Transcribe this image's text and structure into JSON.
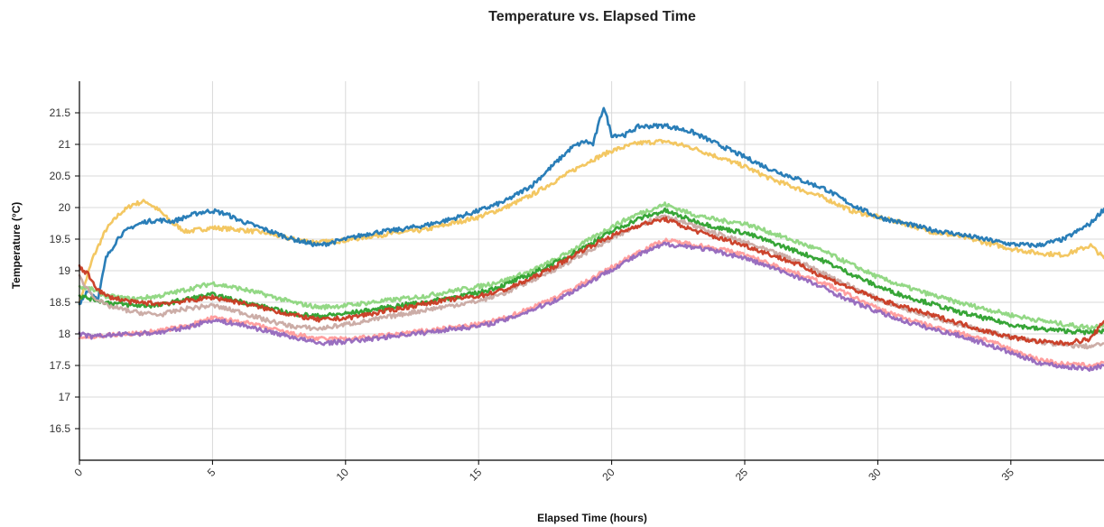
{
  "chart_data": {
    "type": "line",
    "title": "Temperature vs. Elapsed Time",
    "xlabel": "Elapsed Time (hours)",
    "ylabel": "Temperature (°C)",
    "xlim": [
      0,
      38.5
    ],
    "ylim": [
      16,
      22
    ],
    "xticks": [
      0,
      5,
      10,
      15,
      20,
      25,
      30,
      35
    ],
    "yticks": [
      16.5,
      17,
      17.5,
      18,
      18.5,
      19,
      19.5,
      20,
      20.5,
      21,
      21.5
    ],
    "grid": true,
    "legend": "none",
    "series": [
      {
        "color": "#f2c45a",
        "x": [
          0,
          0.5,
          1,
          1.5,
          2,
          2.5,
          3,
          3.5,
          4,
          5,
          6,
          7,
          8,
          9,
          10,
          11,
          12,
          13,
          14,
          15,
          16,
          17,
          18,
          19,
          20,
          21,
          22,
          23,
          24,
          25,
          26,
          27,
          28,
          29,
          30,
          31,
          32,
          33,
          34,
          35,
          36,
          37,
          38,
          38.5
        ],
        "y": [
          18.5,
          19.2,
          19.65,
          19.9,
          20.05,
          20.1,
          19.95,
          19.75,
          19.62,
          19.68,
          19.65,
          19.6,
          19.5,
          19.45,
          19.48,
          19.55,
          19.6,
          19.65,
          19.75,
          19.85,
          20.0,
          20.2,
          20.45,
          20.7,
          20.9,
          21.02,
          21.05,
          20.95,
          20.8,
          20.65,
          20.45,
          20.3,
          20.15,
          19.95,
          19.85,
          19.75,
          19.62,
          19.55,
          19.45,
          19.35,
          19.28,
          19.25,
          19.4,
          19.2
        ]
      },
      {
        "color": "#1f77b4",
        "x": [
          0,
          0.3,
          0.7,
          1,
          1.5,
          2,
          2.5,
          3,
          3.5,
          4,
          4.5,
          5,
          5.5,
          6,
          7,
          8,
          9,
          10,
          11,
          12,
          13,
          14,
          15,
          16,
          17,
          18,
          18.5,
          19,
          19.3,
          19.7,
          20,
          20.5,
          21,
          22,
          23,
          24,
          25,
          26,
          27,
          28,
          29,
          30,
          31,
          32,
          33,
          34,
          35,
          36,
          37,
          38,
          38.5
        ],
        "y": [
          18.45,
          18.7,
          18.55,
          19.2,
          19.55,
          19.7,
          19.78,
          19.8,
          19.78,
          19.85,
          19.92,
          19.95,
          19.9,
          19.8,
          19.65,
          19.5,
          19.4,
          19.5,
          19.6,
          19.65,
          19.72,
          19.82,
          19.95,
          20.1,
          20.35,
          20.75,
          20.95,
          21.05,
          21.0,
          21.6,
          21.15,
          21.15,
          21.28,
          21.3,
          21.2,
          21.0,
          20.8,
          20.6,
          20.45,
          20.3,
          20.05,
          19.85,
          19.75,
          19.65,
          19.58,
          19.5,
          19.42,
          19.4,
          19.5,
          19.75,
          19.98
        ]
      },
      {
        "color": "#8dd67e",
        "x": [
          0,
          0.5,
          1,
          2,
          3,
          4,
          5,
          6,
          7,
          8,
          9,
          10,
          11,
          12,
          13,
          14,
          15,
          16,
          17,
          18,
          19,
          20,
          21,
          22,
          23,
          24,
          25,
          26,
          27,
          28,
          29,
          30,
          31,
          32,
          33,
          34,
          35,
          36,
          37,
          38,
          38.5
        ],
        "y": [
          18.75,
          18.7,
          18.6,
          18.55,
          18.6,
          18.7,
          18.8,
          18.72,
          18.62,
          18.5,
          18.42,
          18.45,
          18.5,
          18.55,
          18.6,
          18.68,
          18.75,
          18.85,
          19.0,
          19.2,
          19.45,
          19.7,
          19.9,
          20.05,
          19.9,
          19.8,
          19.75,
          19.6,
          19.45,
          19.3,
          19.1,
          18.9,
          18.75,
          18.62,
          18.5,
          18.4,
          18.3,
          18.22,
          18.15,
          18.1,
          18.15
        ]
      },
      {
        "color": "#2ca02c",
        "x": [
          0,
          0.5,
          1,
          2,
          3,
          4,
          5,
          6,
          7,
          8,
          9,
          10,
          11,
          12,
          13,
          14,
          15,
          16,
          17,
          18,
          19,
          20,
          21,
          22,
          23,
          24,
          25,
          26,
          27,
          28,
          29,
          30,
          31,
          32,
          33,
          34,
          35,
          36,
          37,
          38,
          38.5
        ],
        "y": [
          18.6,
          18.55,
          18.5,
          18.45,
          18.45,
          18.55,
          18.62,
          18.52,
          18.42,
          18.32,
          18.28,
          18.32,
          18.38,
          18.45,
          18.5,
          18.58,
          18.65,
          18.78,
          18.95,
          19.15,
          19.38,
          19.62,
          19.82,
          19.95,
          19.8,
          19.68,
          19.6,
          19.45,
          19.3,
          19.15,
          18.95,
          18.75,
          18.6,
          18.48,
          18.35,
          18.25,
          18.15,
          18.08,
          18.05,
          18.02,
          18.05
        ]
      },
      {
        "color": "#c9a9a2",
        "x": [
          0,
          0.5,
          1,
          2,
          3,
          4,
          5,
          6,
          7,
          8,
          9,
          10,
          11,
          12,
          13,
          14,
          15,
          16,
          17,
          18,
          19,
          20,
          21,
          22,
          23,
          24,
          25,
          26,
          27,
          28,
          29,
          30,
          31,
          32,
          33,
          34,
          35,
          36,
          37,
          38,
          38.5
        ],
        "y": [
          18.9,
          18.6,
          18.45,
          18.35,
          18.3,
          18.4,
          18.45,
          18.35,
          18.22,
          18.12,
          18.08,
          18.15,
          18.22,
          18.3,
          18.38,
          18.45,
          18.52,
          18.65,
          18.85,
          19.05,
          19.28,
          19.5,
          19.72,
          19.88,
          19.72,
          19.58,
          19.45,
          19.3,
          19.15,
          18.95,
          18.75,
          18.55,
          18.4,
          18.28,
          18.15,
          18.05,
          17.95,
          17.88,
          17.82,
          17.8,
          17.85
        ]
      },
      {
        "color": "#c93a22",
        "x": [
          0,
          0.3,
          0.7,
          1,
          2,
          3,
          4,
          5,
          6,
          7,
          8,
          9,
          10,
          11,
          12,
          13,
          14,
          15,
          16,
          17,
          18,
          19,
          20,
          21,
          22,
          23,
          24,
          25,
          26,
          27,
          28,
          29,
          30,
          31,
          32,
          33,
          34,
          35,
          36,
          37,
          38,
          38.5
        ],
        "y": [
          19.05,
          18.95,
          18.7,
          18.6,
          18.5,
          18.48,
          18.52,
          18.58,
          18.5,
          18.4,
          18.3,
          18.22,
          18.25,
          18.32,
          18.4,
          18.48,
          18.55,
          18.6,
          18.7,
          18.88,
          19.1,
          19.35,
          19.55,
          19.72,
          19.82,
          19.65,
          19.52,
          19.4,
          19.25,
          19.1,
          18.9,
          18.72,
          18.55,
          18.42,
          18.3,
          18.18,
          18.05,
          17.95,
          17.88,
          17.85,
          17.92,
          18.2
        ]
      },
      {
        "color": "#ff9a9a",
        "x": [
          0,
          0.5,
          1,
          2,
          3,
          4,
          5,
          6,
          7,
          8,
          9,
          10,
          11,
          12,
          13,
          14,
          15,
          16,
          17,
          18,
          19,
          20,
          21,
          22,
          23,
          24,
          25,
          26,
          27,
          28,
          29,
          30,
          31,
          32,
          33,
          34,
          35,
          36,
          37,
          38,
          38.5
        ],
        "y": [
          17.95,
          17.95,
          17.98,
          18.0,
          18.05,
          18.12,
          18.25,
          18.2,
          18.1,
          18.0,
          17.92,
          17.92,
          17.95,
          18.0,
          18.05,
          18.1,
          18.15,
          18.25,
          18.42,
          18.6,
          18.82,
          19.05,
          19.3,
          19.48,
          19.42,
          19.35,
          19.25,
          19.1,
          18.95,
          18.8,
          18.6,
          18.4,
          18.25,
          18.12,
          18.02,
          17.92,
          17.75,
          17.6,
          17.52,
          17.5,
          17.55
        ]
      },
      {
        "color": "#9467bd",
        "x": [
          0,
          0.5,
          1,
          2,
          3,
          4,
          5,
          6,
          7,
          8,
          9,
          10,
          11,
          12,
          13,
          14,
          15,
          16,
          17,
          18,
          19,
          20,
          21,
          22,
          23,
          24,
          25,
          26,
          27,
          28,
          29,
          30,
          31,
          32,
          33,
          34,
          35,
          36,
          37,
          38,
          38.5
        ],
        "y": [
          18.0,
          17.95,
          17.98,
          18.0,
          18.02,
          18.1,
          18.22,
          18.15,
          18.05,
          17.95,
          17.85,
          17.88,
          17.92,
          17.98,
          18.02,
          18.08,
          18.12,
          18.22,
          18.38,
          18.55,
          18.78,
          19.02,
          19.25,
          19.42,
          19.38,
          19.3,
          19.2,
          19.05,
          18.9,
          18.72,
          18.52,
          18.35,
          18.2,
          18.08,
          17.98,
          17.85,
          17.7,
          17.55,
          17.48,
          17.45,
          17.5
        ]
      }
    ]
  }
}
